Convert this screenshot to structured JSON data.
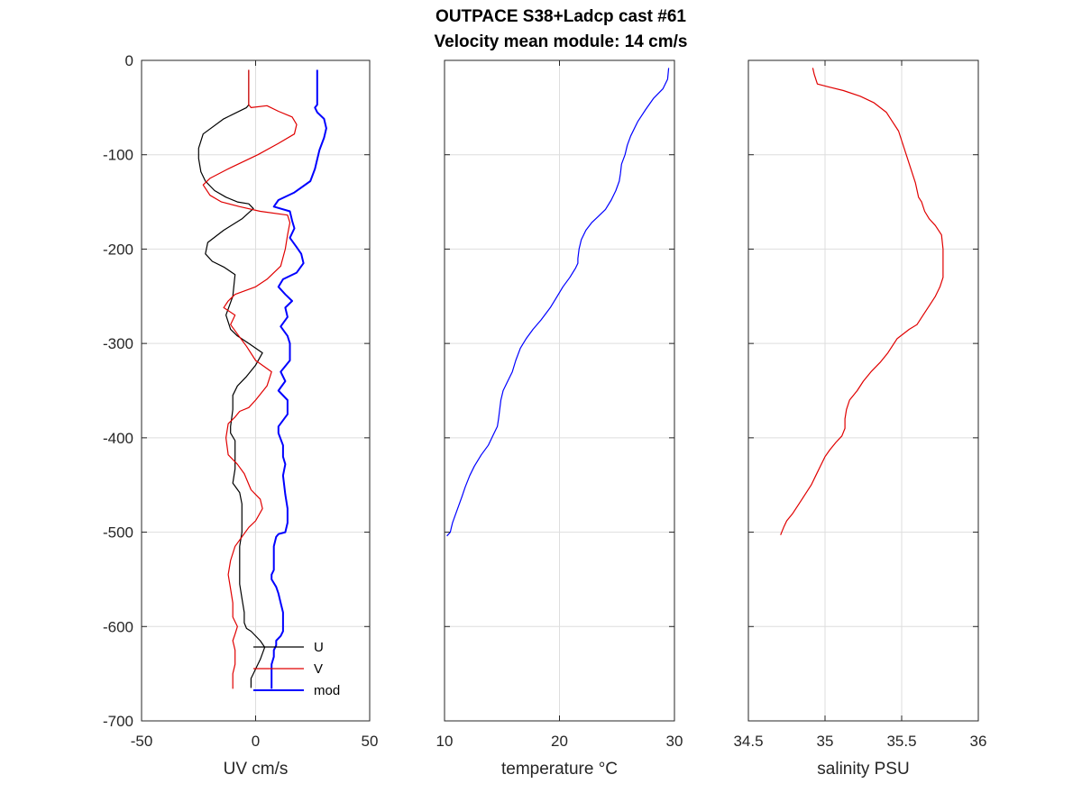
{
  "title_line1": "OUTPACE S38+Ladcp cast #61",
  "title_line2": "Velocity mean module:  14 cm/s",
  "chart_data": [
    {
      "type": "line",
      "xlabel": "UV cm/s",
      "xlim": [
        -50,
        50
      ],
      "ylim": [
        -700,
        0
      ],
      "xticks": [
        -50,
        0,
        50
      ],
      "yticks": [
        0,
        -100,
        -200,
        -300,
        -400,
        -500,
        -600,
        -700
      ],
      "grid": true,
      "legend": "bottom-right",
      "series": [
        {
          "name": "U",
          "color": "#000000",
          "x": [
            -3,
            -3,
            -4,
            -14,
            -23,
            -25,
            -25,
            -24,
            -22,
            -18,
            -13,
            -8,
            -3,
            -1,
            -6,
            -14,
            -21,
            -22,
            -19,
            -14,
            -9,
            -10,
            -13,
            -11,
            -8,
            -3,
            3,
            0,
            -4,
            -8,
            -10,
            -10,
            -11,
            -11,
            -9,
            -9,
            -9,
            -10,
            -7,
            -6,
            -6,
            -6,
            -7,
            -7,
            -7,
            -6,
            -5,
            -5,
            -4,
            -2,
            2,
            4,
            2,
            0,
            -1,
            -2,
            -2
          ],
          "y": [
            -10,
            -47,
            -50,
            -62,
            -78,
            -93,
            -104,
            -118,
            -128,
            -138,
            -145,
            -150,
            -152,
            -157,
            -168,
            -180,
            -193,
            -205,
            -213,
            -219,
            -227,
            -250,
            -270,
            -285,
            -292,
            -300,
            -310,
            -323,
            -335,
            -345,
            -355,
            -370,
            -388,
            -395,
            -403,
            -418,
            -433,
            -448,
            -458,
            -470,
            -485,
            -500,
            -515,
            -535,
            -555,
            -570,
            -585,
            -596,
            -602,
            -605,
            -615,
            -622,
            -635,
            -645,
            -650,
            -655,
            -665
          ]
        },
        {
          "name": "V",
          "color": "#e00000",
          "x": [
            -3,
            -3,
            -2,
            5,
            10,
            16,
            18,
            17,
            10,
            1,
            -12,
            -20,
            -23,
            -20,
            -15,
            -7,
            2,
            14,
            15,
            14,
            13,
            11,
            5,
            0,
            -9,
            -12,
            -14,
            -9,
            -11,
            -8,
            -4,
            0,
            7,
            5,
            0,
            -3,
            -7,
            -9,
            -12,
            -13,
            -12,
            -8,
            -5,
            -2,
            2,
            3,
            0,
            -3,
            -6,
            -9,
            -11,
            -12,
            -11,
            -10,
            -10,
            -8,
            -9,
            -10,
            -9,
            -9,
            -10,
            -10,
            -10
          ],
          "y": [
            -10,
            -47,
            -50,
            -48,
            -54,
            -60,
            -68,
            -78,
            -88,
            -100,
            -115,
            -125,
            -132,
            -143,
            -150,
            -155,
            -160,
            -164,
            -172,
            -185,
            -200,
            -218,
            -232,
            -240,
            -248,
            -255,
            -262,
            -270,
            -280,
            -290,
            -303,
            -318,
            -330,
            -345,
            -360,
            -368,
            -372,
            -378,
            -385,
            -400,
            -418,
            -428,
            -438,
            -455,
            -465,
            -475,
            -488,
            -495,
            -505,
            -515,
            -530,
            -545,
            -560,
            -575,
            -590,
            -600,
            -608,
            -615,
            -625,
            -640,
            -650,
            -660,
            -666
          ]
        },
        {
          "name": "mod",
          "color": "#0000ff",
          "x": [
            27,
            27,
            26,
            27,
            30,
            31,
            30,
            28,
            27,
            26,
            24,
            17,
            10,
            8,
            15,
            16,
            17,
            15,
            18,
            20,
            21,
            18,
            12,
            10,
            13,
            16,
            13,
            14,
            11,
            14,
            15,
            15,
            11,
            13,
            10,
            14,
            14,
            10,
            10,
            12,
            12,
            13,
            12,
            13,
            14,
            14,
            13,
            10,
            9,
            8,
            8,
            8,
            7,
            7,
            9,
            10,
            11,
            12,
            12,
            12,
            11,
            9,
            9,
            8,
            8,
            7,
            7,
            7,
            7,
            7
          ],
          "y": [
            -10,
            -47,
            -50,
            -55,
            -62,
            -72,
            -82,
            -95,
            -105,
            -115,
            -128,
            -140,
            -148,
            -155,
            -160,
            -170,
            -178,
            -188,
            -198,
            -205,
            -215,
            -225,
            -232,
            -240,
            -248,
            -255,
            -262,
            -272,
            -282,
            -292,
            -300,
            -318,
            -330,
            -340,
            -350,
            -360,
            -375,
            -388,
            -395,
            -408,
            -420,
            -428,
            -440,
            -460,
            -475,
            -490,
            -500,
            -502,
            -505,
            -515,
            -530,
            -540,
            -545,
            -550,
            -558,
            -565,
            -575,
            -585,
            -595,
            -605,
            -610,
            -615,
            -620,
            -625,
            -632,
            -640,
            -645,
            -650,
            -660,
            -666
          ]
        }
      ]
    },
    {
      "type": "line",
      "xlabel": "temperature °C",
      "xlim": [
        10,
        30
      ],
      "ylim": [
        -700,
        0
      ],
      "xticks": [
        10,
        20,
        30
      ],
      "grid": true,
      "series": [
        {
          "color": "#0000ff",
          "x": [
            29.5,
            29.4,
            29.0,
            28.2,
            27.5,
            26.8,
            26.2,
            25.9,
            25.7,
            25.4,
            25.3,
            25.2,
            24.9,
            24.5,
            24.0,
            23.4,
            22.8,
            22.3,
            21.9,
            21.7,
            21.6,
            21.6,
            21.4,
            20.9,
            20.3,
            19.8,
            19.2,
            18.4,
            17.7,
            17.1,
            16.6,
            16.2,
            15.9,
            15.5,
            15.1,
            14.9,
            14.8,
            14.7,
            14.6,
            14.2,
            13.8,
            13.2,
            12.6,
            12.2,
            11.8,
            11.5,
            11.2,
            10.9,
            10.7,
            10.6,
            10.5,
            10.2
          ],
          "y": [
            -8,
            -20,
            -30,
            -40,
            -52,
            -65,
            -80,
            -90,
            -100,
            -110,
            -120,
            -128,
            -138,
            -148,
            -158,
            -165,
            -172,
            -180,
            -190,
            -200,
            -210,
            -215,
            -220,
            -230,
            -240,
            -250,
            -262,
            -275,
            -285,
            -295,
            -305,
            -318,
            -330,
            -340,
            -350,
            -360,
            -370,
            -380,
            -388,
            -398,
            -408,
            -418,
            -430,
            -440,
            -452,
            -463,
            -473,
            -483,
            -490,
            -495,
            -500,
            -504
          ]
        }
      ]
    },
    {
      "type": "line",
      "xlabel": "salinity PSU",
      "xlim": [
        34.5,
        36
      ],
      "ylim": [
        -700,
        0
      ],
      "xticks": [
        34.5,
        35,
        35.5,
        36
      ],
      "xticklabels": [
        "34.5",
        "35",
        "35.5",
        "36"
      ],
      "grid": true,
      "series": [
        {
          "color": "#e00000",
          "x": [
            34.92,
            34.93,
            34.95,
            35.02,
            35.12,
            35.23,
            35.32,
            35.4,
            35.44,
            35.48,
            35.5,
            35.53,
            35.56,
            35.59,
            35.61,
            35.63,
            35.65,
            35.68,
            35.72,
            35.76,
            35.77,
            35.77,
            35.77,
            35.77,
            35.75,
            35.72,
            35.68,
            35.64,
            35.6,
            35.55,
            35.47,
            35.41,
            35.36,
            35.3,
            35.25,
            35.21,
            35.16,
            35.14,
            35.13,
            35.13,
            35.11,
            35.07,
            35.03,
            35.0,
            34.97,
            34.94,
            34.91,
            34.87,
            34.83,
            34.79,
            34.75,
            34.73,
            34.71
          ],
          "y": [
            -8,
            -15,
            -25,
            -28,
            -32,
            -38,
            -45,
            -55,
            -65,
            -75,
            -85,
            -100,
            -115,
            -130,
            -145,
            -150,
            -160,
            -168,
            -175,
            -185,
            -200,
            -210,
            -220,
            -230,
            -240,
            -250,
            -260,
            -270,
            -280,
            -285,
            -295,
            -310,
            -320,
            -330,
            -340,
            -350,
            -360,
            -370,
            -380,
            -390,
            -398,
            -405,
            -413,
            -420,
            -430,
            -440,
            -450,
            -460,
            -470,
            -480,
            -488,
            -495,
            -503
          ]
        }
      ]
    }
  ]
}
